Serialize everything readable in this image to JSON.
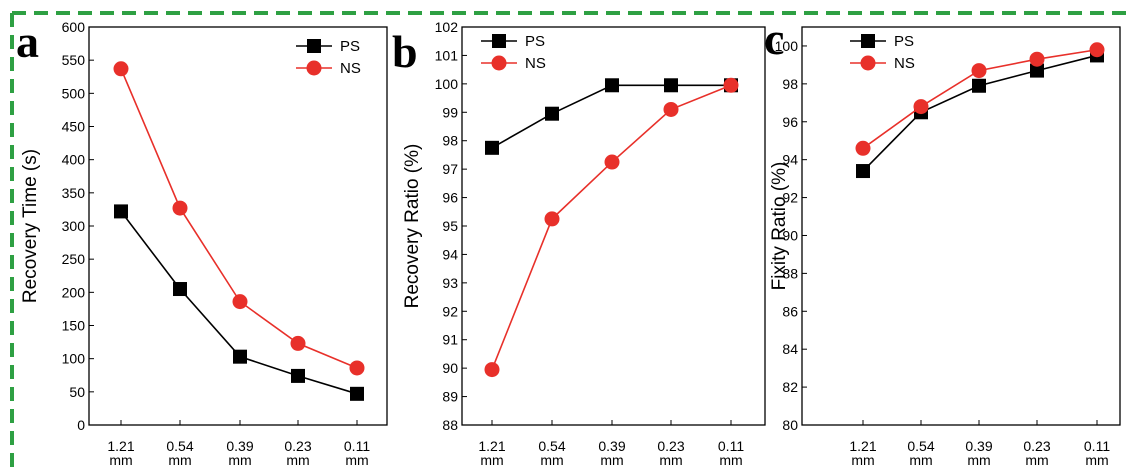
{
  "frame_color": "#2ea043",
  "series_colors": {
    "PS": "#000000",
    "NS": "#e8302a"
  },
  "chart_data": [
    {
      "type": "line",
      "panel": "a",
      "ylabel": "Recovery Time (s)",
      "xlabel": "",
      "categories": [
        "1.21 mm",
        "0.54 mm",
        "0.39 mm",
        "0.23 mm",
        "0.11 mm"
      ],
      "ylim": [
        0,
        600
      ],
      "yticks": [
        0,
        50,
        100,
        150,
        200,
        250,
        300,
        350,
        400,
        450,
        500,
        550,
        600
      ],
      "legend": "top-right",
      "series": [
        {
          "name": "PS",
          "marker": "square",
          "color": "#000000",
          "values": [
            322,
            205,
            103,
            74,
            47
          ]
        },
        {
          "name": "NS",
          "marker": "circle",
          "color": "#e8302a",
          "values": [
            537,
            327,
            186,
            123,
            86
          ]
        }
      ]
    },
    {
      "type": "line",
      "panel": "b",
      "ylabel": "Recovery Ratio (%)",
      "xlabel": "",
      "categories": [
        "1.21 mm",
        "0.54 mm",
        "0.39 mm",
        "0.23 mm",
        "0.11 mm"
      ],
      "ylim": [
        88,
        102
      ],
      "yticks": [
        88,
        89,
        90,
        91,
        92,
        93,
        94,
        95,
        96,
        97,
        98,
        99,
        100,
        101,
        102
      ],
      "legend": "top-left",
      "series": [
        {
          "name": "PS",
          "marker": "square",
          "color": "#000000",
          "values": [
            97.75,
            98.95,
            99.95,
            99.95,
            99.95
          ]
        },
        {
          "name": "NS",
          "marker": "circle",
          "color": "#e8302a",
          "values": [
            89.95,
            95.25,
            97.25,
            99.1,
            99.95
          ]
        }
      ]
    },
    {
      "type": "line",
      "panel": "c",
      "ylabel": "Fixity Ratio (%)",
      "xlabel": "",
      "categories": [
        "1.21 mm",
        "0.54 mm",
        "0.39 mm",
        "0.23 mm",
        "0.11 mm"
      ],
      "ylim": [
        80,
        101
      ],
      "yticks": [
        80,
        82,
        84,
        86,
        88,
        90,
        92,
        94,
        96,
        98,
        100
      ],
      "legend": "top-left",
      "series": [
        {
          "name": "PS",
          "marker": "square",
          "color": "#000000",
          "values": [
            93.4,
            96.5,
            97.9,
            98.7,
            99.5
          ]
        },
        {
          "name": "NS",
          "marker": "circle",
          "color": "#e8302a",
          "values": [
            94.6,
            96.8,
            98.7,
            99.3,
            99.8
          ]
        }
      ]
    }
  ]
}
